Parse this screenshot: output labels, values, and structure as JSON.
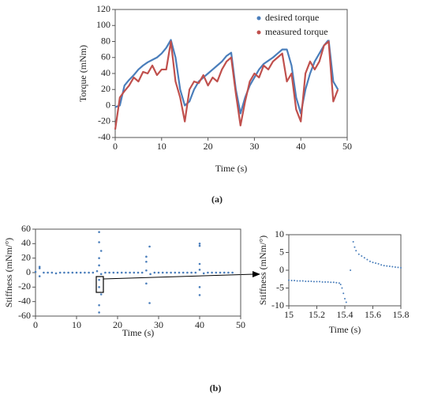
{
  "chart_data": [
    {
      "type": "line",
      "xlabel": "Time (s)",
      "ylabel": "Torque (mNm)",
      "x": [
        0,
        1,
        2,
        3,
        4,
        5,
        6,
        7,
        8,
        9,
        10,
        11,
        12,
        13,
        14,
        15,
        16,
        17,
        18,
        19,
        20,
        21,
        22,
        23,
        24,
        25,
        26,
        27,
        28,
        29,
        30,
        31,
        32,
        33,
        34,
        35,
        36,
        37,
        38,
        39,
        40,
        41,
        42,
        43,
        44,
        45,
        46,
        47,
        48
      ],
      "series": [
        {
          "name": "desired torque",
          "color": "#4a7ebb",
          "values": [
            -2,
            0,
            25,
            32,
            38,
            45,
            50,
            54,
            57,
            60,
            65,
            72,
            82,
            60,
            20,
            0,
            5,
            20,
            30,
            35,
            40,
            45,
            50,
            55,
            62,
            66,
            20,
            -10,
            10,
            25,
            35,
            45,
            52,
            56,
            60,
            65,
            70,
            70,
            50,
            10,
            -10,
            20,
            40,
            55,
            65,
            75,
            82,
            30,
            20
          ]
        },
        {
          "name": "measured torque",
          "color": "#c0504d",
          "values": [
            -30,
            10,
            18,
            25,
            35,
            30,
            42,
            40,
            50,
            38,
            45,
            45,
            80,
            30,
            10,
            -20,
            20,
            30,
            28,
            38,
            25,
            35,
            30,
            45,
            55,
            60,
            15,
            -25,
            5,
            30,
            40,
            35,
            50,
            45,
            55,
            60,
            65,
            30,
            40,
            -5,
            -20,
            40,
            55,
            45,
            55,
            75,
            80,
            5,
            20
          ]
        }
      ],
      "xlim": [
        0,
        50
      ],
      "xticks": [
        0,
        10,
        20,
        30,
        40,
        50
      ],
      "ylim": [
        -40,
        120
      ],
      "yticks": [
        -40,
        -20,
        0,
        20,
        40,
        60,
        80,
        100,
        120
      ],
      "legend": "upper right"
    },
    {
      "type": "scatter",
      "xlabel": "Time (s)",
      "ylabel": "Stiffness (mNm/°)",
      "color": "#4a7ebb",
      "x": [
        0,
        1,
        2,
        3,
        4,
        5,
        6,
        7,
        8,
        9,
        10,
        11,
        12,
        13,
        14,
        15,
        16,
        17,
        18,
        19,
        20,
        21,
        22,
        23,
        24,
        25,
        26,
        27,
        28,
        29,
        30,
        31,
        32,
        33,
        34,
        35,
        36,
        37,
        38,
        39,
        40,
        41,
        42,
        43,
        44,
        45,
        46,
        47,
        48,
        1,
        1,
        15.5,
        15.5,
        15.5,
        15.5,
        15.5,
        15.5,
        15.5,
        15.5,
        16,
        16,
        27,
        27,
        27,
        27.8,
        27.8,
        40,
        40,
        40,
        40,
        40
      ],
      "values": [
        1,
        6,
        0,
        0,
        0,
        -1,
        0,
        0,
        0,
        0,
        0,
        0,
        0,
        0,
        0,
        2,
        -2,
        0,
        0,
        0,
        0,
        0,
        0,
        0,
        0,
        0,
        0,
        3,
        -2,
        0,
        0,
        0,
        0,
        0,
        0,
        0,
        0,
        0,
        0,
        0,
        4,
        -1,
        0,
        0,
        0,
        0,
        0,
        0,
        0,
        8,
        -5,
        56,
        42,
        -45,
        -55,
        20,
        -20,
        10,
        -10,
        30,
        -30,
        22,
        -15,
        15,
        36,
        -42,
        40,
        37,
        -31,
        -20,
        12
      ],
      "xlim": [
        0,
        50
      ],
      "xticks": [
        0,
        10,
        20,
        30,
        40,
        50
      ],
      "ylim": [
        -60,
        60
      ],
      "yticks": [
        -60,
        -40,
        -20,
        0,
        20,
        40,
        60
      ]
    },
    {
      "type": "scatter",
      "xlabel": "Time (s)",
      "ylabel": "Stiffness (mNm/°)",
      "color": "#4a7ebb",
      "x": [
        15,
        15.02,
        15.04,
        15.06,
        15.08,
        15.1,
        15.12,
        15.14,
        15.16,
        15.18,
        15.2,
        15.22,
        15.24,
        15.26,
        15.28,
        15.3,
        15.32,
        15.34,
        15.36,
        15.37,
        15.38,
        15.39,
        15.4,
        15.41,
        15.44,
        15.46,
        15.47,
        15.48,
        15.5,
        15.52,
        15.54,
        15.56,
        15.58,
        15.6,
        15.62,
        15.64,
        15.66,
        15.68,
        15.7,
        15.72,
        15.74,
        15.76,
        15.78,
        15.8
      ],
      "values": [
        -2.8,
        -2.9,
        -2.9,
        -3,
        -3,
        -3,
        -3.1,
        -3.1,
        -3.1,
        -3.2,
        -3.2,
        -3.2,
        -3.3,
        -3.3,
        -3.3,
        -3.4,
        -3.4,
        -3.5,
        -3.6,
        -4,
        -5,
        -6.5,
        -8,
        -9,
        0,
        8,
        6.5,
        5.5,
        4.5,
        4,
        3.5,
        3,
        2.5,
        2.2,
        2,
        1.8,
        1.5,
        1.3,
        1.2,
        1.1,
        1,
        0.9,
        0.8,
        0.7
      ],
      "xlim": [
        15,
        15.8
      ],
      "xticks": [
        15,
        15.2,
        15.4,
        15.6,
        15.8
      ],
      "ylim": [
        -10,
        10
      ],
      "yticks": [
        -10,
        -5,
        0,
        5,
        10
      ]
    }
  ],
  "captions": [
    "(a)",
    "(b)"
  ]
}
